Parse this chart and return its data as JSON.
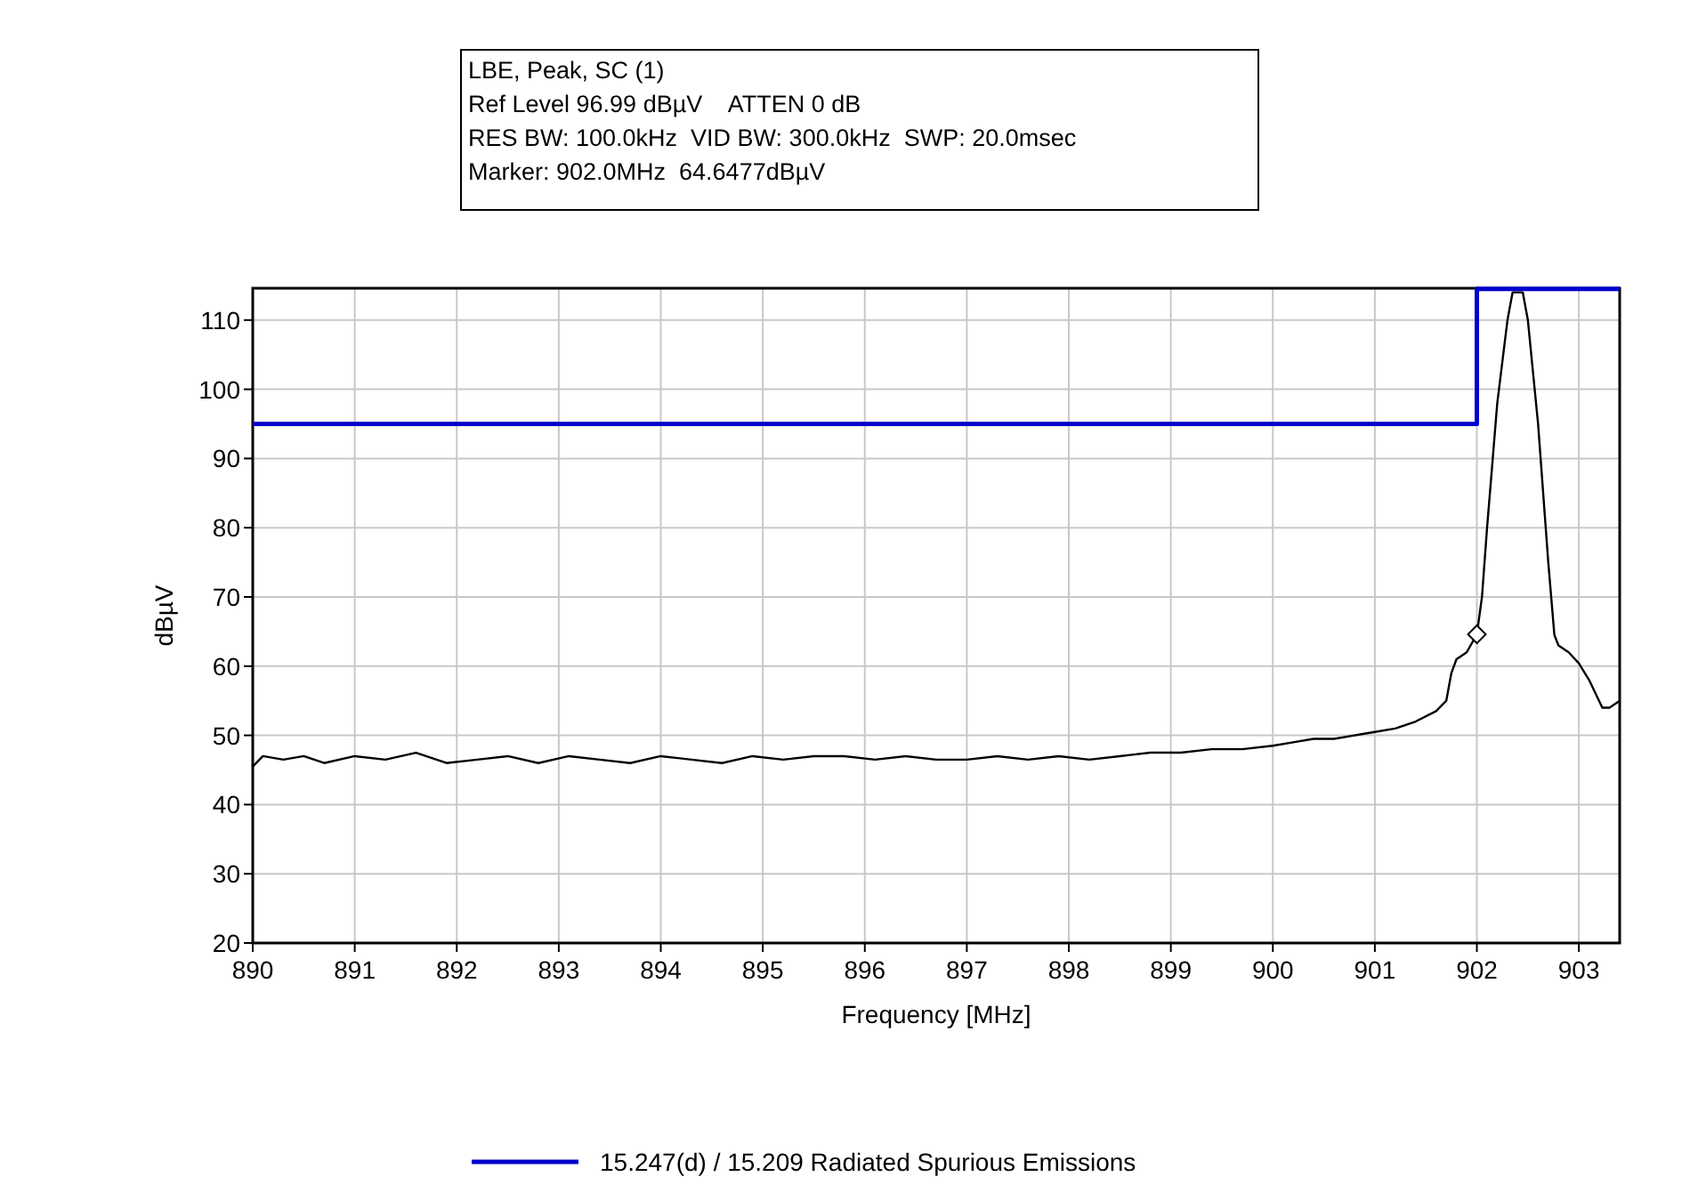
{
  "chart_data": {
    "type": "line",
    "xlabel": "Frequency [MHz]",
    "ylabel": "dBµV",
    "annotations": [
      "LBE, Peak, SC (1)",
      "Ref Level 96.99 dBµV    ATTEN 0 dB",
      "RES BW: 100.0kHz  VID BW: 300.0kHz  SWP: 20.0msec",
      "Marker: 902.0MHz  64.6477dBµV"
    ],
    "xlim": [
      890,
      903.4
    ],
    "xticks": [
      890,
      891,
      892,
      893,
      894,
      895,
      896,
      897,
      898,
      899,
      900,
      901,
      902,
      903
    ],
    "ylim": [
      20,
      114.6
    ],
    "yticks": [
      20,
      30,
      40,
      50,
      60,
      70,
      80,
      90,
      100,
      110
    ],
    "grid": true,
    "legend": "bottom",
    "series": [
      {
        "color": "#000000",
        "marker": "none",
        "x": [
          890.0,
          890.1,
          890.3,
          890.5,
          890.7,
          891.0,
          891.3,
          891.6,
          891.9,
          892.2,
          892.5,
          892.8,
          893.1,
          893.4,
          893.7,
          894.0,
          894.3,
          894.6,
          894.9,
          895.2,
          895.5,
          895.8,
          896.1,
          896.4,
          896.7,
          897.0,
          897.3,
          897.6,
          897.9,
          898.2,
          898.5,
          898.8,
          899.1,
          899.4,
          899.7,
          900.0,
          900.2,
          900.4,
          900.6,
          900.8,
          901.0,
          901.2,
          901.4,
          901.6,
          901.7,
          901.75,
          901.8,
          901.9,
          902.0,
          902.05,
          902.1,
          902.2,
          902.3,
          902.35,
          902.45,
          902.5,
          902.6,
          902.7,
          902.76,
          902.8,
          902.9,
          903.0,
          903.1,
          903.23,
          903.3,
          903.4
        ],
        "values": [
          45.5,
          47,
          46.5,
          47,
          46,
          47,
          46.5,
          47.5,
          46,
          46.5,
          47,
          46,
          47,
          46.5,
          46,
          47,
          46.5,
          46,
          47,
          46.5,
          47,
          47,
          46.5,
          47,
          46.5,
          46.5,
          47,
          46.5,
          47,
          46.5,
          47,
          47.5,
          47.5,
          48,
          48,
          48.5,
          49,
          49.5,
          49.5,
          50,
          50.5,
          51,
          52,
          53.5,
          55,
          59,
          61,
          62,
          64.6,
          70,
          80,
          98,
          110,
          114,
          114,
          110,
          95,
          75,
          64.5,
          63,
          62,
          60.4,
          58,
          54,
          54,
          55
        ]
      },
      {
        "type": "scatter",
        "color": "#000000",
        "marker": "diamond",
        "x": [
          902.0
        ],
        "values": [
          64.6
        ]
      },
      {
        "type": "step",
        "name": "15.247(d) / 15.209 Radiated Spurious Emissions",
        "color": "#0000cc",
        "marker": "none",
        "x": [
          890,
          902,
          903.4
        ],
        "values": [
          95,
          114.5,
          114.5
        ]
      }
    ]
  }
}
